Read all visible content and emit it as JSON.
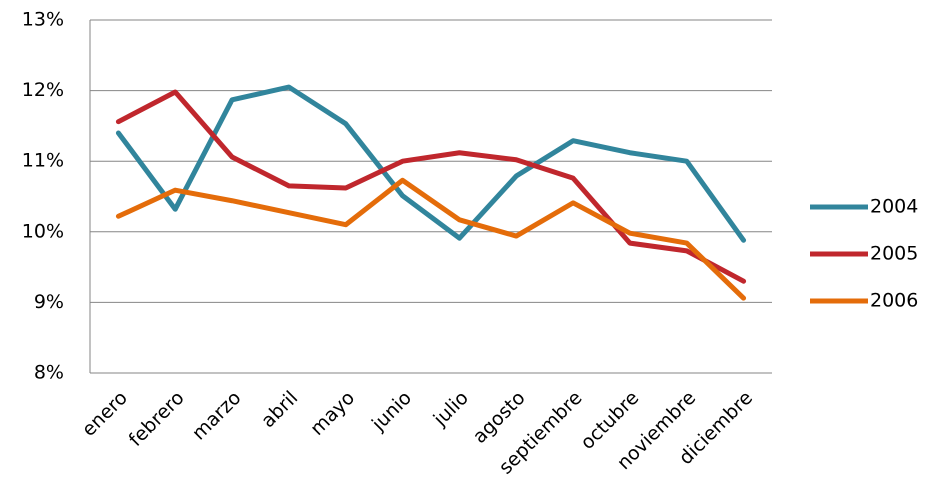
{
  "chart_data": {
    "type": "line",
    "categories": [
      "enero",
      "febrero",
      "marzo",
      "abril",
      "mayo",
      "junio",
      "julio",
      "agosto",
      "septiembre",
      "octubre",
      "noviembre",
      "diciembre"
    ],
    "series": [
      {
        "name": "2004",
        "color": "#31859c",
        "values": [
          11.4,
          10.32,
          11.87,
          12.05,
          11.53,
          10.51,
          9.91,
          10.79,
          11.29,
          11.12,
          11.0,
          9.88
        ]
      },
      {
        "name": "2005",
        "color": "#c0272d",
        "values": [
          11.56,
          11.98,
          11.06,
          10.65,
          10.62,
          11.0,
          11.12,
          11.02,
          10.76,
          9.84,
          9.73,
          9.3
        ]
      },
      {
        "name": "2006",
        "color": "#e46c0a",
        "values": [
          10.22,
          10.59,
          10.44,
          10.27,
          10.1,
          10.73,
          10.17,
          9.94,
          10.41,
          9.98,
          9.84,
          9.06
        ]
      }
    ],
    "ylim": [
      8,
      13
    ],
    "yticks": [
      {
        "value": 8,
        "label": "8%"
      },
      {
        "value": 9,
        "label": "9%"
      },
      {
        "value": 10,
        "label": "10%"
      },
      {
        "value": 11,
        "label": "11%"
      },
      {
        "value": 12,
        "label": "12%"
      },
      {
        "value": 13,
        "label": "13%"
      }
    ],
    "grid": true,
    "legend": "right"
  }
}
